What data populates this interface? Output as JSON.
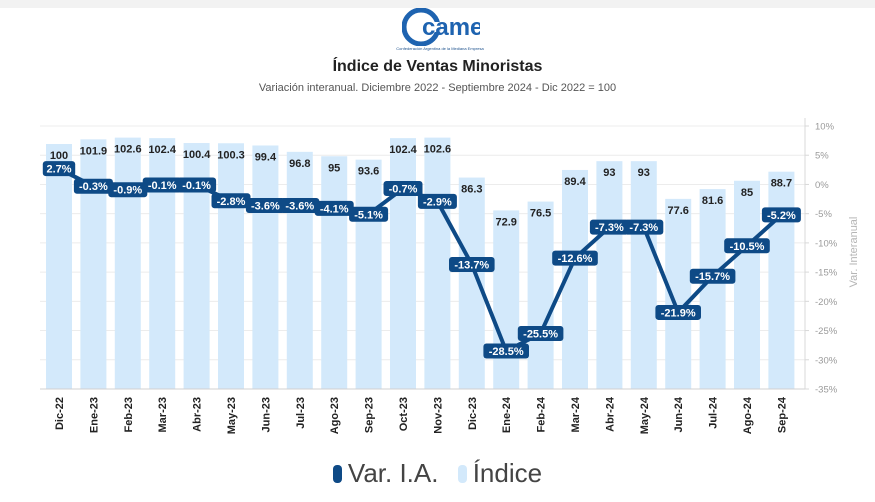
{
  "logo": {
    "text": "came",
    "subtitle": "Confederación Argentina de la Mediana Empresa"
  },
  "chart_data": {
    "type": "bar",
    "title": "Índice de Ventas Minoristas",
    "subtitle": "Variación interanual. Diciembre 2022 - Septiembre 2024 - Dic 2022 = 100",
    "ylabel_right": "Var. Interanual",
    "categories": [
      "Dic-22",
      "Ene-23",
      "Feb-23",
      "Mar-23",
      "Abr-23",
      "May-23",
      "Jun-23",
      "Jul-23",
      "Ago-23",
      "Sep-23",
      "Oct-23",
      "Nov-23",
      "Dic-23",
      "Ene-24",
      "Feb-24",
      "Mar-24",
      "Abr-24",
      "May-24",
      "Jun-24",
      "Jul-24",
      "Ago-24",
      "Sep-24"
    ],
    "series": [
      {
        "name": "Índice",
        "type": "bar",
        "color": "#d3e9fb",
        "values": [
          100,
          101.9,
          102.6,
          102.4,
          100.4,
          100.3,
          99.4,
          96.8,
          95,
          93.6,
          102.4,
          102.6,
          86.3,
          72.9,
          76.5,
          89.4,
          93,
          93,
          77.6,
          81.6,
          85,
          88.7
        ],
        "labels": [
          "100",
          "101.9",
          "102.6",
          "102.4",
          "100.4",
          "100.3",
          "99.4",
          "96.8",
          "95",
          "93.6",
          "102.4",
          "102.6",
          "86.3",
          "72.9",
          "76.5",
          "89.4",
          "93",
          "93",
          "77.6",
          "81.6",
          "85",
          "88.7"
        ]
      },
      {
        "name": "Var. I.A.",
        "type": "line",
        "color": "#0e4a86",
        "axis": "right",
        "values": [
          2.7,
          -0.3,
          -0.9,
          -0.1,
          -0.1,
          -2.8,
          -3.6,
          -3.6,
          -4.1,
          -5.1,
          -0.7,
          -2.9,
          -13.7,
          -28.5,
          -25.5,
          -12.6,
          -7.3,
          -7.3,
          -21.9,
          -15.7,
          -10.5,
          -5.2
        ],
        "labels": [
          "2.7%",
          "-0.3%",
          "-0.9%",
          "-0.1%",
          "-0.1%",
          "-2.8%",
          "-3.6%",
          "-3.6%",
          "-4.1%",
          "-5.1%",
          "-0.7%",
          "-2.9%",
          "-13.7%",
          "-28.5%",
          "-25.5%",
          "-12.6%",
          "-7.3%",
          "-7.3%",
          "-21.9%",
          "-15.7%",
          "-10.5%",
          "-5.2%"
        ]
      }
    ],
    "right_axis": {
      "range": [
        -35,
        10
      ],
      "ticks": [
        "10%",
        "5%",
        "0%",
        "-5%",
        "-10%",
        "-15%",
        "-20%",
        "-25%",
        "-30%",
        "-35%"
      ]
    },
    "legend": [
      "Var. I.A.",
      "Índice"
    ],
    "legend_position": "bottom",
    "grid": true
  }
}
